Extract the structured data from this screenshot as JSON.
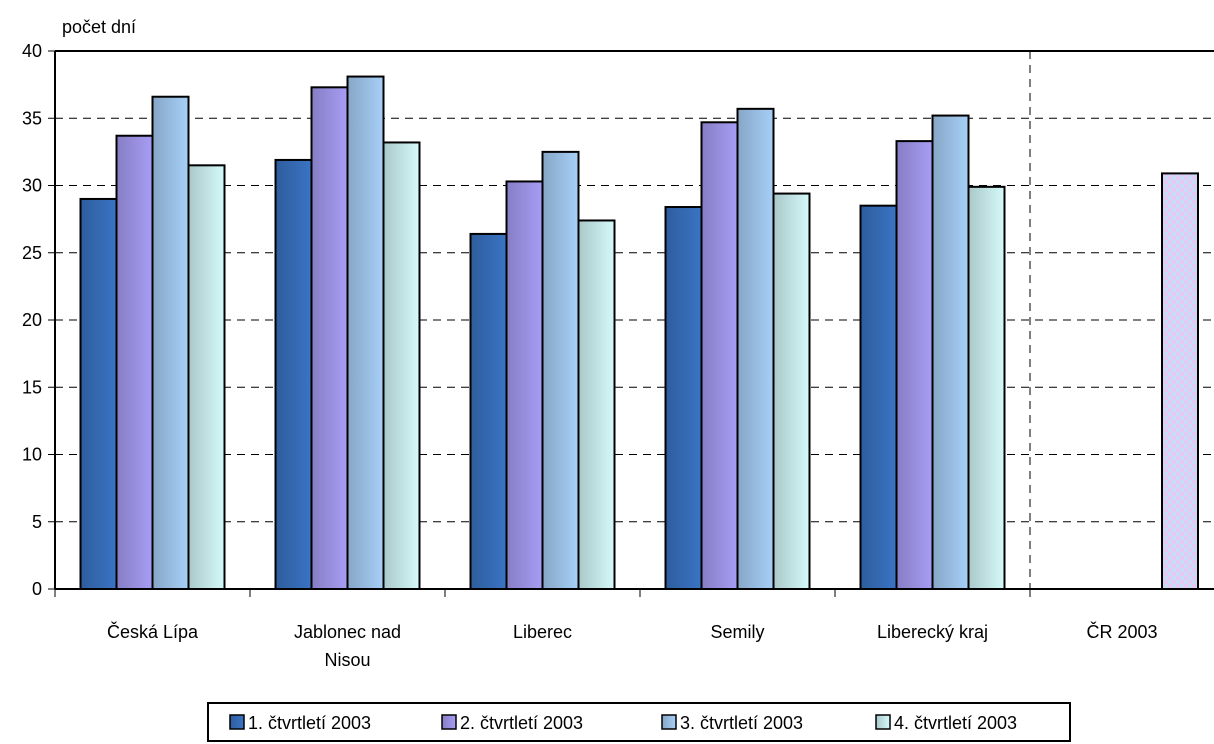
{
  "chart_data": {
    "type": "bar",
    "title": "",
    "ylabel": "počet dní",
    "xlabel": "",
    "ylim": [
      0,
      40
    ],
    "yticks": [
      0,
      5,
      10,
      15,
      20,
      25,
      30,
      35,
      40
    ],
    "grid": "horizontal dashed",
    "legend_position": "bottom",
    "categories": [
      {
        "lines": [
          "Česká Lípa"
        ]
      },
      {
        "lines": [
          "Jablonec nad",
          "Nisou"
        ]
      },
      {
        "lines": [
          "Liberec"
        ]
      },
      {
        "lines": [
          "Semily"
        ]
      },
      {
        "lines": [
          "Liberecký kraj"
        ]
      }
    ],
    "series": [
      {
        "name": "1. čtvrtletí 2003",
        "color": "#3a74c4",
        "values": [
          29.0,
          31.9,
          26.4,
          28.4,
          28.5
        ]
      },
      {
        "name": "2. čtvrtletí 2003",
        "color": "#a79df5",
        "values": [
          33.7,
          37.3,
          30.3,
          34.7,
          33.3
        ]
      },
      {
        "name": "3. čtvrtletí 2003",
        "color": "#a7d0f8",
        "values": [
          36.6,
          38.1,
          32.5,
          35.7,
          35.2
        ]
      },
      {
        "name": "4. čtvrtletí 2003",
        "color": "#d5fafb",
        "values": [
          31.5,
          33.2,
          27.4,
          29.4,
          29.9
        ]
      }
    ],
    "reference": {
      "label": "ČR 2003",
      "value": 30.9,
      "fill": "checkered"
    }
  }
}
